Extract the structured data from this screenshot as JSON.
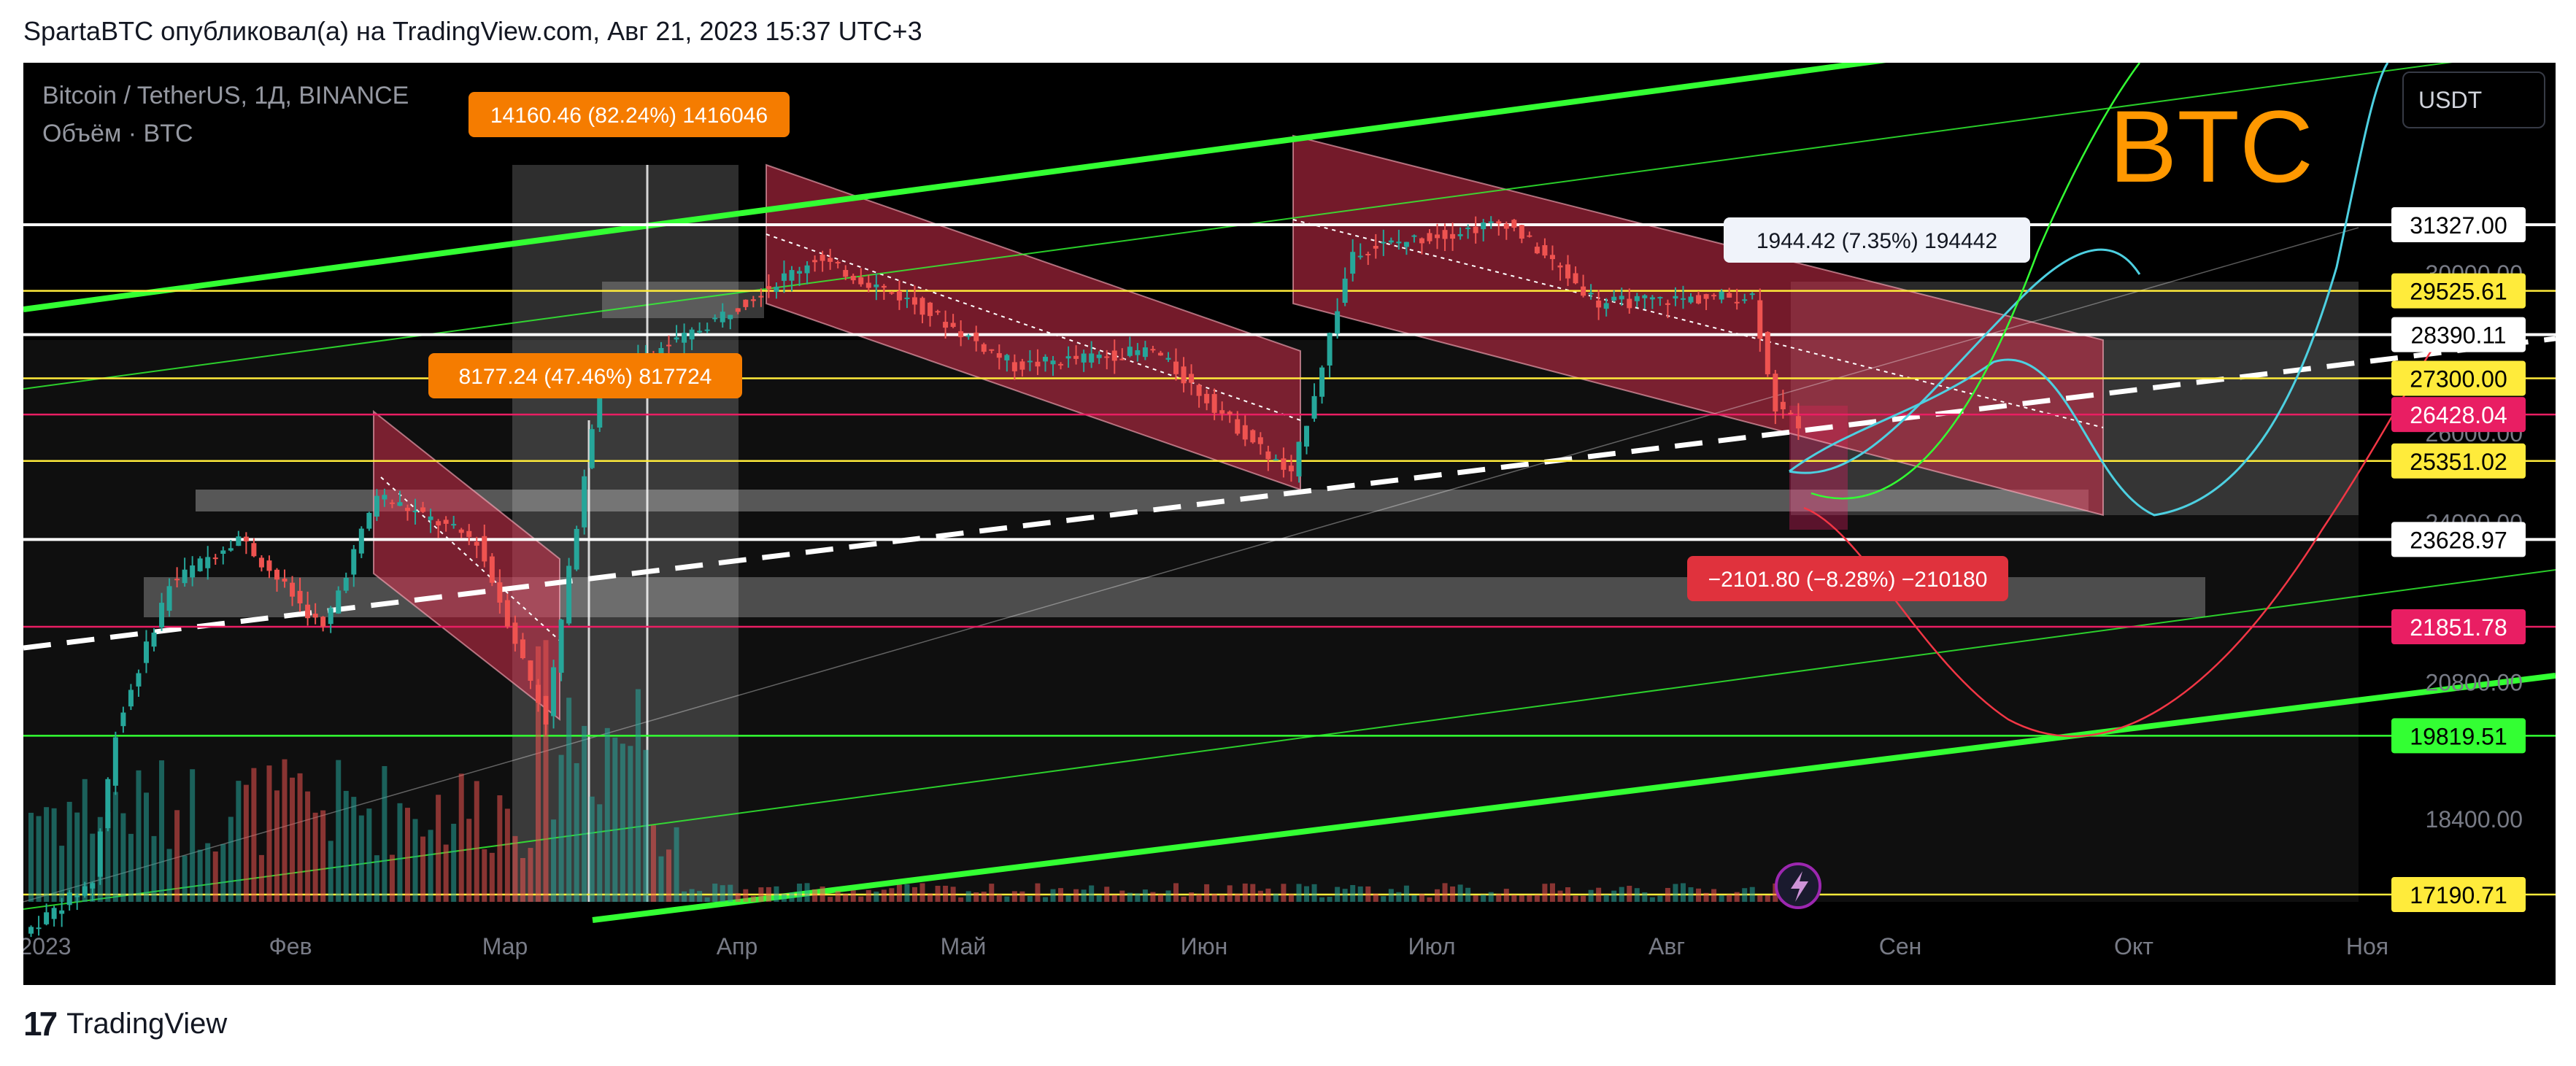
{
  "header": {
    "text": "SpartaBTC опубликовал(а) на TradingView.com, Авг 21, 2023 15:37 UTC+3"
  },
  "legend": {
    "symbol": "Bitcoin / TetherUS, 1Д, BINANCE",
    "volume": "Объём · BTC"
  },
  "currency_button": "USDT",
  "ticker_overlay": "BTC",
  "footer": {
    "brand": "TradingView"
  },
  "colors": {
    "background": "#000000",
    "up": "#26a69a",
    "down": "#ef5350",
    "channel_green": "#33ff33",
    "level_yellow": "#ffeb3b",
    "level_pink": "#e91e63",
    "forecast_cyan": "#4dd0e1",
    "forecast_red": "#f23645",
    "label_orange": "#f57c00"
  },
  "chart_data": {
    "type": "candlestick",
    "x_ticks": [
      "2023",
      "Фев",
      "Мар",
      "Апр",
      "Май",
      "Июн",
      "Июл",
      "Авг",
      "Сен",
      "Окт",
      "Ноя"
    ],
    "y_ticks": [
      "30000.00",
      "28390.11",
      "26000.00",
      "24000.00",
      "20800.00",
      "19819.51",
      "18400.00"
    ],
    "ylim": [
      16500,
      33000
    ],
    "y_scale": "log",
    "price_series_approx": [
      {
        "date": "2023-01-01",
        "close": 16600
      },
      {
        "date": "2023-01-10",
        "close": 17400
      },
      {
        "date": "2023-01-13",
        "close": 19900
      },
      {
        "date": "2023-01-20",
        "close": 22700
      },
      {
        "date": "2023-01-29",
        "close": 23700
      },
      {
        "date": "2023-02-09",
        "close": 21800
      },
      {
        "date": "2023-02-16",
        "close": 24600
      },
      {
        "date": "2023-03-01",
        "close": 23600
      },
      {
        "date": "2023-03-10",
        "close": 20100
      },
      {
        "date": "2023-03-17",
        "close": 27400
      },
      {
        "date": "2023-03-28",
        "close": 28300
      },
      {
        "date": "2023-04-14",
        "close": 30400
      },
      {
        "date": "2023-04-27",
        "close": 29200
      },
      {
        "date": "2023-05-10",
        "close": 27600
      },
      {
        "date": "2023-05-28",
        "close": 28000
      },
      {
        "date": "2023-06-15",
        "close": 25000
      },
      {
        "date": "2023-06-23",
        "close": 30600
      },
      {
        "date": "2023-07-13",
        "close": 31400
      },
      {
        "date": "2023-07-25",
        "close": 29200
      },
      {
        "date": "2023-08-14",
        "close": 29400
      },
      {
        "date": "2023-08-17",
        "close": 26600
      },
      {
        "date": "2023-08-21",
        "close": 26100
      }
    ],
    "price_labels": [
      {
        "value": "31327.00",
        "style": "white"
      },
      {
        "value": "29525.61",
        "style": "yellow"
      },
      {
        "value": "28390.11",
        "style": "white"
      },
      {
        "value": "27300.00",
        "style": "yellow"
      },
      {
        "value": "26428.04",
        "style": "pink"
      },
      {
        "value": "25351.02",
        "style": "yellow"
      },
      {
        "value": "23628.97",
        "style": "white"
      },
      {
        "value": "21851.78",
        "style": "pink"
      },
      {
        "value": "19819.51",
        "style": "green"
      },
      {
        "value": "17190.71",
        "style": "yellow"
      }
    ],
    "horizontal_levels": [
      {
        "price": 31327,
        "color": "#ffffff"
      },
      {
        "price": 29525.61,
        "color": "#ffeb3b"
      },
      {
        "price": 28390.11,
        "color": "#ffffff"
      },
      {
        "price": 27300,
        "color": "#ffeb3b"
      },
      {
        "price": 26428.04,
        "color": "#e91e63"
      },
      {
        "price": 25351.02,
        "color": "#ffeb3b"
      },
      {
        "price": 23628.97,
        "color": "#ffffff"
      },
      {
        "price": 21851.78,
        "color": "#e91e63"
      },
      {
        "price": 19819.51,
        "color": "#33ff33"
      },
      {
        "price": 17190.71,
        "color": "#ffeb3b"
      }
    ],
    "annotations": [
      {
        "text": "14160.46 (82.24%) 1416046",
        "style": "orange"
      },
      {
        "text": "8177.24 (47.46%) 817724",
        "style": "orange"
      },
      {
        "text": "1944.42 (7.35%) 194442",
        "style": "white"
      },
      {
        "text": "−2101.80 (−8.28%) −210180",
        "style": "red"
      }
    ],
    "legend_placement": "top-left",
    "grid": false
  }
}
